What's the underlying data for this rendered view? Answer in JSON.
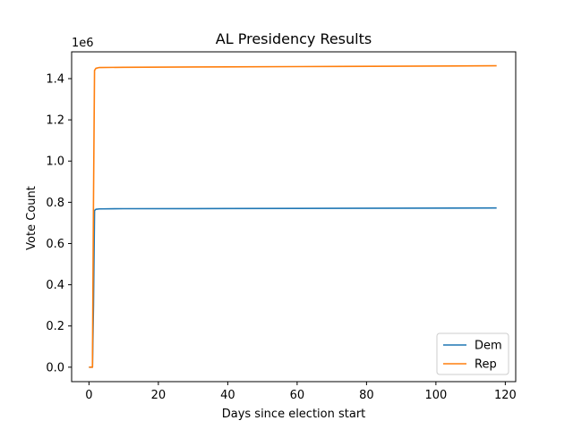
{
  "chart_data": {
    "type": "line",
    "title": "AL Presidency Results",
    "xlabel": "Days since election start",
    "ylabel": "Vote Count",
    "y_offset_label": "1e6",
    "xlim": [
      -5,
      123
    ],
    "ylim": [
      -70000,
      1530000
    ],
    "x_ticks": [
      0,
      20,
      40,
      60,
      80,
      100,
      120
    ],
    "x_tick_labels": [
      "0",
      "20",
      "40",
      "60",
      "80",
      "100",
      "120"
    ],
    "y_ticks": [
      0,
      200000,
      400000,
      600000,
      800000,
      1000000,
      1200000,
      1400000
    ],
    "y_tick_labels": [
      "0.0",
      "0.2",
      "0.4",
      "0.6",
      "0.8",
      "1.0",
      "1.2",
      "1.4"
    ],
    "grid": false,
    "legend_position": "lower-right",
    "series": [
      {
        "name": "Dem",
        "color": "#1f77b4",
        "x": [
          0,
          0.5,
          1.0,
          1.3,
          1.6,
          2.0,
          3.0,
          10,
          30,
          60,
          90,
          117.5
        ],
        "y": [
          0,
          0,
          0,
          300000,
          760000,
          766000,
          768000,
          769000,
          769500,
          770500,
          771500,
          772500
        ]
      },
      {
        "name": "Rep",
        "color": "#ff7f0e",
        "x": [
          0,
          0.5,
          1.0,
          1.3,
          1.6,
          2.0,
          3.0,
          10,
          30,
          60,
          90,
          117.5
        ],
        "y": [
          0,
          0,
          0,
          800000,
          1440000,
          1450000,
          1454000,
          1455000,
          1456500,
          1458500,
          1460500,
          1462500
        ]
      }
    ]
  }
}
